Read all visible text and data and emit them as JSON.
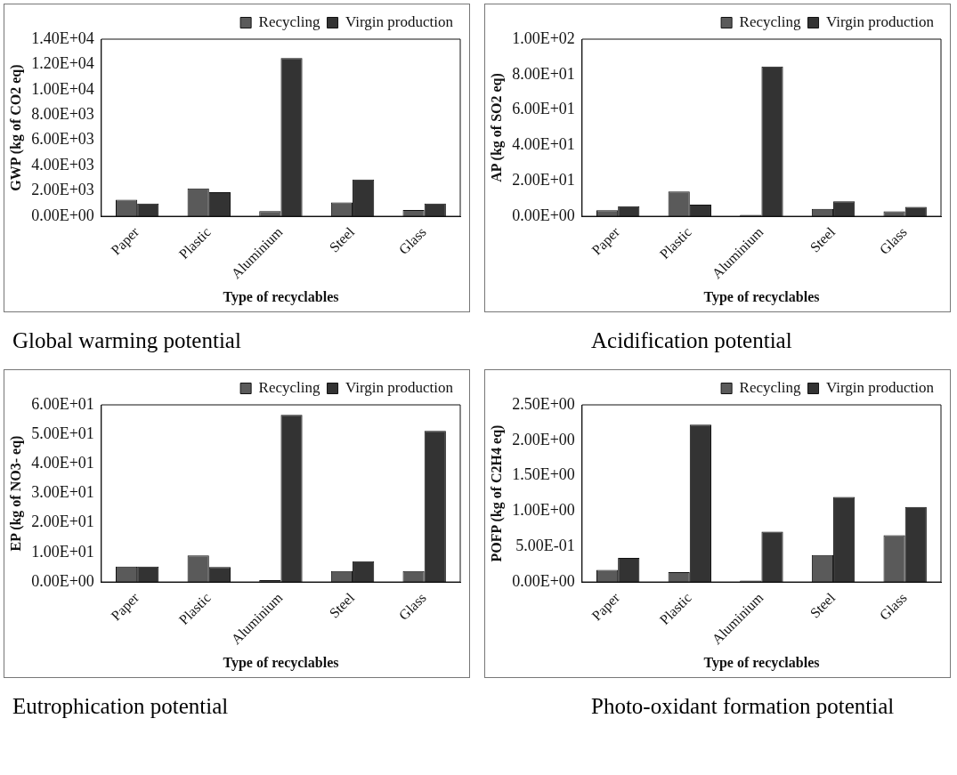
{
  "chart_data": [
    {
      "type": "bar",
      "title": "Global warming potential",
      "xlabel": "Type of recyclables",
      "ylabel": "GWP (kg of CO2 eq)",
      "categories": [
        "Paper",
        "Plastic",
        "Aluminium",
        "Steel",
        "Glass"
      ],
      "series": [
        {
          "name": "Recycling",
          "color": "#5a5a5a",
          "values": [
            1300,
            2200,
            400,
            1100,
            500
          ]
        },
        {
          "name": "Virgin production",
          "color": "#333333",
          "values": [
            1000,
            1900,
            12500,
            2900,
            1000
          ]
        }
      ],
      "ylim": [
        0,
        14000
      ],
      "yticks": [
        {
          "value": 0,
          "label": "0.00E+00"
        },
        {
          "value": 2000,
          "label": "2.00E+03"
        },
        {
          "value": 4000,
          "label": "4.00E+03"
        },
        {
          "value": 6000,
          "label": "6.00E+03"
        },
        {
          "value": 8000,
          "label": "8.00E+03"
        },
        {
          "value": 10000,
          "label": "1.00E+04"
        },
        {
          "value": 12000,
          "label": "1.20E+04"
        },
        {
          "value": 14000,
          "label": "1.40E+04"
        }
      ],
      "grid": false,
      "legend": "top"
    },
    {
      "type": "bar",
      "title": "Acidification potential",
      "xlabel": "Type of recyclables",
      "ylabel": "AP (kg of SO2 eq)",
      "categories": [
        "Paper",
        "Plastic",
        "Aluminium",
        "Steel",
        "Glass"
      ],
      "series": [
        {
          "name": "Recycling",
          "color": "#5a5a5a",
          "values": [
            3.4,
            14,
            0.8,
            4.2,
            2.8
          ]
        },
        {
          "name": "Virgin production",
          "color": "#333333",
          "values": [
            5.7,
            6.5,
            84.5,
            8.5,
            5.3
          ]
        }
      ],
      "ylim": [
        0,
        100
      ],
      "yticks": [
        {
          "value": 0,
          "label": "0.00E+00"
        },
        {
          "value": 20,
          "label": "2.00E+01"
        },
        {
          "value": 40,
          "label": "4.00E+01"
        },
        {
          "value": 60,
          "label": "6.00E+01"
        },
        {
          "value": 80,
          "label": "8.00E+01"
        },
        {
          "value": 100,
          "label": "1.00E+02"
        }
      ],
      "grid": false,
      "legend": "top"
    },
    {
      "type": "bar",
      "title": "Eutrophication potential",
      "xlabel": "Type of recyclables",
      "ylabel": "EP (kg of NO3- eq)",
      "categories": [
        "Paper",
        "Plastic",
        "Aluminium",
        "Steel",
        "Glass"
      ],
      "series": [
        {
          "name": "Recycling",
          "color": "#5a5a5a",
          "values": [
            5.2,
            9,
            0.6,
            3.7,
            3.7
          ]
        },
        {
          "name": "Virgin production",
          "color": "#333333",
          "values": [
            5.2,
            5.1,
            56.6,
            7,
            51.2
          ]
        }
      ],
      "ylim": [
        0,
        60
      ],
      "yticks": [
        {
          "value": 0,
          "label": "0.00E+00"
        },
        {
          "value": 10,
          "label": "1.00E+01"
        },
        {
          "value": 20,
          "label": "2.00E+01"
        },
        {
          "value": 30,
          "label": "3.00E+01"
        },
        {
          "value": 40,
          "label": "4.00E+01"
        },
        {
          "value": 50,
          "label": "5.00E+01"
        },
        {
          "value": 60,
          "label": "6.00E+01"
        }
      ],
      "grid": false,
      "legend": "top"
    },
    {
      "type": "bar",
      "title": "Photo-oxidant formation potential",
      "xlabel": "Type of recyclables",
      "ylabel": "POFP (kg of C2H4 eq)",
      "categories": [
        "Paper",
        "Plastic",
        "Aluminium",
        "Steel",
        "Glass"
      ],
      "series": [
        {
          "name": "Recycling",
          "color": "#5a5a5a",
          "values": [
            0.17,
            0.14,
            0.02,
            0.38,
            0.66
          ]
        },
        {
          "name": "Virgin production",
          "color": "#333333",
          "values": [
            0.34,
            2.22,
            0.71,
            1.2,
            1.06
          ]
        }
      ],
      "ylim": [
        0,
        2.5
      ],
      "yticks": [
        {
          "value": 0,
          "label": "0.00E+00"
        },
        {
          "value": 0.5,
          "label": "5.00E-01"
        },
        {
          "value": 1,
          "label": "1.00E+00"
        },
        {
          "value": 1.5,
          "label": "1.50E+00"
        },
        {
          "value": 2,
          "label": "2.00E+00"
        },
        {
          "value": 2.5,
          "label": "2.50E+00"
        }
      ],
      "grid": false,
      "legend": "top"
    }
  ]
}
